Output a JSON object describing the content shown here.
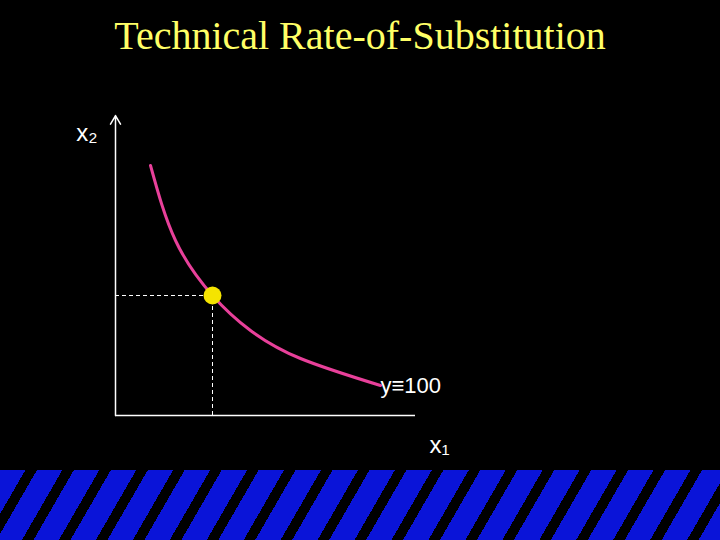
{
  "chart_data": {
    "type": "line",
    "title": "Technical Rate-of-Substitution",
    "x_label": "x₁",
    "y_label": "x₂",
    "annotation": "y≡100",
    "x": [
      3.5,
      6,
      9.7,
      13.5,
      18.5,
      26.5
    ],
    "values": [
      25,
      17.5,
      12,
      8.5,
      5.7,
      3
    ],
    "color": "#e8409a",
    "marked_point": {
      "x": 9.7,
      "y": 12,
      "color": "#f5e400"
    },
    "xlim": [
      0,
      30
    ],
    "ylim": [
      0,
      30
    ],
    "tick_labels": false,
    "grid": false
  }
}
